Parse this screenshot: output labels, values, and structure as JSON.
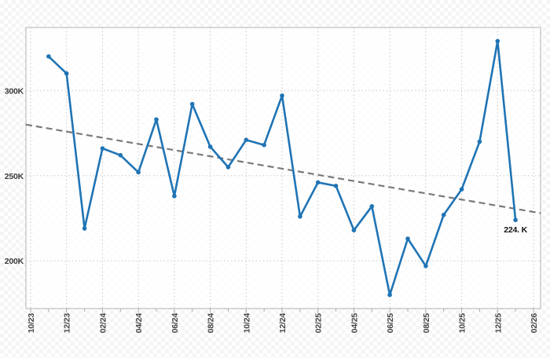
{
  "chart_data": {
    "type": "line",
    "title": "",
    "xlabel": "",
    "ylabel": "",
    "grid": true,
    "legend": false,
    "ylim": [
      172,
      337
    ],
    "y_ticks": [
      {
        "label": "300K",
        "value": 300
      },
      {
        "label": "250K",
        "value": 250
      },
      {
        "label": "200K",
        "value": 200
      }
    ],
    "x_tick_labels": [
      "10/23",
      "12/23",
      "02/24",
      "04/24",
      "06/24",
      "08/24",
      "10/24",
      "12/24",
      "02/25",
      "04/25",
      "06/25",
      "08/25",
      "10/25",
      "12/25",
      "02/26"
    ],
    "months": [
      "10/23",
      "11/23",
      "12/23",
      "01/24",
      "02/24",
      "03/24",
      "04/24",
      "05/24",
      "06/24",
      "07/24",
      "08/24",
      "09/24",
      "10/24",
      "11/24",
      "12/24",
      "01/25",
      "02/25",
      "03/25",
      "04/25",
      "05/25",
      "06/25",
      "07/25",
      "08/25",
      "09/25",
      "10/25",
      "11/25",
      "12/25",
      "01/26",
      "02/26"
    ],
    "series": [
      {
        "name": "monthly-values",
        "color": "#1f74b5",
        "start_month_index": 1,
        "values": [
          320,
          310,
          219,
          266,
          262,
          252,
          283,
          238,
          292,
          267,
          255,
          271,
          268,
          297,
          226,
          246,
          244,
          218,
          232,
          180,
          213,
          197,
          227,
          242,
          270,
          329,
          224
        ]
      }
    ],
    "trendline": {
      "color": "#7a7a7a",
      "style": "dashed",
      "start_value": 280,
      "end_value": 228
    },
    "annotation": {
      "text": "224. K",
      "month_index": 27,
      "value": 224
    },
    "colors": {
      "line": "#1f74b5",
      "trend": "#7a7a7a",
      "grid": "#c9c9c9",
      "border": "#bfbfbf",
      "tick": "#a8a8a8"
    }
  }
}
